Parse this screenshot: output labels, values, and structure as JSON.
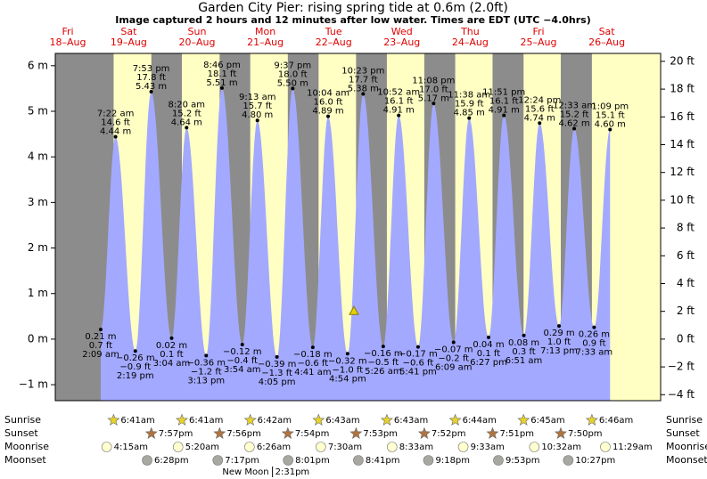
{
  "chart_data": {
    "type": "tide",
    "title": "Garden City Pier: rising  spring tide at 0.6m (2.0ft)",
    "subtitle": "Image captured 2 hours and 12 minutes after low water. Times are EDT (UTC −4.0hrs)",
    "current_height": 0.6,
    "ylim": [
      -1.35,
      6.27
    ],
    "yticks": [
      {
        "value": -1,
        "label": "−1 m"
      },
      {
        "value": 0,
        "label": "0 m"
      },
      {
        "value": 1,
        "label": "1 m"
      },
      {
        "value": 2,
        "label": "2 m"
      },
      {
        "value": 3,
        "label": "3 m"
      },
      {
        "value": 4,
        "label": "4 m"
      },
      {
        "value": 5,
        "label": "5 m"
      },
      {
        "value": 6,
        "label": "6 m"
      }
    ],
    "y2lim": [
      -4.43,
      20.57
    ],
    "y2ticks": [
      {
        "value": -4,
        "label": "−4 ft"
      },
      {
        "value": -2,
        "label": "−2 ft"
      },
      {
        "value": 0,
        "label": "0 ft"
      },
      {
        "value": 2,
        "label": "2 ft"
      },
      {
        "value": 4,
        "label": "4 ft"
      },
      {
        "value": 6,
        "label": "6 ft"
      },
      {
        "value": 8,
        "label": "8 ft"
      },
      {
        "value": 10,
        "label": "10 ft"
      },
      {
        "value": 12,
        "label": "12 ft"
      },
      {
        "value": 14,
        "label": "14 ft"
      },
      {
        "value": 16,
        "label": "16 ft"
      },
      {
        "value": 18,
        "label": "18 ft"
      },
      {
        "value": 20,
        "label": "20 ft"
      }
    ],
    "rows": {
      "sunrise": "Sunrise",
      "sunset": "Sunset",
      "moonrise": "Moonrise",
      "moonset": "Moonset"
    },
    "colors": {
      "night": "#8c8c8c",
      "day": "#ffffc4",
      "tide": "#a3a9ff"
    },
    "days": [
      {
        "name": "Fri",
        "date": "18–Aug",
        "tides": []
      },
      {
        "name": "Sat",
        "date": "19–Aug",
        "sunrise": "6:41am",
        "sunset": "7:57pm",
        "moonrise": "4:15am",
        "moonset": "6:28pm",
        "tides": [
          {
            "time": "2:09 am",
            "value": 0.21,
            "label": "0.21 m",
            "feet": "0.7 ft"
          },
          {
            "time": "7:22 am",
            "value": 4.44,
            "label": "4.44 m",
            "feet": "14.6 ft"
          },
          {
            "time": "2:19 pm",
            "value": -0.26,
            "label": "−0.26 m",
            "feet": "−0.9 ft"
          },
          {
            "time": "7:53 pm",
            "value": 5.43,
            "label": "5.43 m",
            "feet": "17.8 ft"
          }
        ]
      },
      {
        "name": "Sun",
        "date": "20–Aug",
        "sunrise": "6:41am",
        "sunset": "7:56pm",
        "moonrise": "5:20am",
        "moonset": "7:17pm",
        "tides": [
          {
            "time": "3:04 am",
            "value": 0.02,
            "label": "0.02 m",
            "feet": "0.1 ft"
          },
          {
            "time": "8:20 am",
            "value": 4.64,
            "label": "4.64 m",
            "feet": "15.2 ft"
          },
          {
            "time": "3:13 pm",
            "value": -0.36,
            "label": "−0.36 m",
            "feet": "−1.2 ft"
          },
          {
            "time": "8:46 pm",
            "value": 5.51,
            "label": "5.51 m",
            "feet": "18.1 ft"
          }
        ]
      },
      {
        "name": "Mon",
        "date": "21–Aug",
        "sunrise": "6:42am",
        "sunset": "7:54pm",
        "moonrise": "6:26am",
        "moonset": "8:01pm",
        "moon_phase": {
          "name": "New Moon",
          "time": "2:31pm"
        },
        "tides": [
          {
            "time": "3:54 am",
            "value": -0.12,
            "label": "−0.12 m",
            "feet": "−0.4 ft"
          },
          {
            "time": "9:13 am",
            "value": 4.8,
            "label": "4.80 m",
            "feet": "15.7 ft"
          },
          {
            "time": "4:05 pm",
            "value": -0.39,
            "label": "−0.39 m",
            "feet": "−1.3 ft"
          },
          {
            "time": "9:37 pm",
            "value": 5.5,
            "label": "5.50 m",
            "feet": "18.0 ft"
          }
        ]
      },
      {
        "name": "Tue",
        "date": "22–Aug",
        "sunrise": "6:43am",
        "sunset": "7:53pm",
        "moonrise": "7:30am",
        "moonset": "8:41pm",
        "tides": [
          {
            "time": "4:41 am",
            "value": -0.18,
            "label": "−0.18 m",
            "feet": "−0.6 ft"
          },
          {
            "time": "10:04 am",
            "value": 4.89,
            "label": "4.89 m",
            "feet": "16.0 ft"
          },
          {
            "time": "4:54 pm",
            "value": -0.32,
            "label": "−0.32 m",
            "feet": "−1.0 ft"
          },
          {
            "time": "10:23 pm",
            "value": 5.38,
            "label": "5.38 m",
            "feet": "17.7 ft"
          }
        ]
      },
      {
        "name": "Wed",
        "date": "23–Aug",
        "sunrise": "6:43am",
        "sunset": "7:52pm",
        "moonrise": "8:33am",
        "moonset": "9:18pm",
        "tides": [
          {
            "time": "5:26 am",
            "value": -0.16,
            "label": "−0.16 m",
            "feet": "−0.5 ft"
          },
          {
            "time": "10:52 am",
            "value": 4.91,
            "label": "4.91 m",
            "feet": "16.1 ft"
          },
          {
            "time": "5:41 pm",
            "value": -0.17,
            "label": "−0.17 m",
            "feet": "−0.6 ft"
          },
          {
            "time": "11:08 pm",
            "value": 5.17,
            "label": "5.17 m",
            "feet": "17.0 ft"
          }
        ]
      },
      {
        "name": "Thu",
        "date": "24–Aug",
        "sunrise": "6:44am",
        "sunset": "7:51pm",
        "moonrise": "9:33am",
        "moonset": "9:53pm",
        "tides": [
          {
            "time": "6:09 am",
            "value": -0.07,
            "label": "−0.07 m",
            "feet": "−0.2 ft"
          },
          {
            "time": "11:38 am",
            "value": 4.85,
            "label": "4.85 m",
            "feet": "15.9 ft"
          },
          {
            "time": "6:27 pm",
            "value": 0.04,
            "label": "0.04 m",
            "feet": "0.1 ft"
          },
          {
            "time": "11:51 pm",
            "value": 4.91,
            "label": "4.91 m",
            "feet": "16.1 ft"
          }
        ]
      },
      {
        "name": "Fri",
        "date": "25–Aug",
        "sunrise": "6:45am",
        "sunset": "7:50pm",
        "moonrise": "10:32am",
        "moonset": "10:27pm",
        "tides": [
          {
            "time": "6:51 am",
            "value": 0.08,
            "label": "0.08 m",
            "feet": "0.3 ft"
          },
          {
            "time": "12:24 pm",
            "value": 4.74,
            "label": "4.74 m",
            "feet": "15.6 ft"
          },
          {
            "time": "7:13 pm",
            "value": 0.29,
            "label": "0.29 m",
            "feet": "1.0 ft"
          }
        ]
      },
      {
        "name": "Sat",
        "date": "26–Aug",
        "sunrise": "6:46am",
        "moonrise": "11:29am",
        "tides": [
          {
            "time": "12:33 am",
            "value": 4.62,
            "label": "4.62 m",
            "feet": "15.2 ft"
          },
          {
            "time": "7:33 am",
            "value": 0.26,
            "label": "0.26 m",
            "feet": "0.9 ft"
          },
          {
            "time": "1:09 pm",
            "value": 4.6,
            "label": "4.60 m",
            "feet": "15.1 ft"
          }
        ]
      }
    ]
  }
}
